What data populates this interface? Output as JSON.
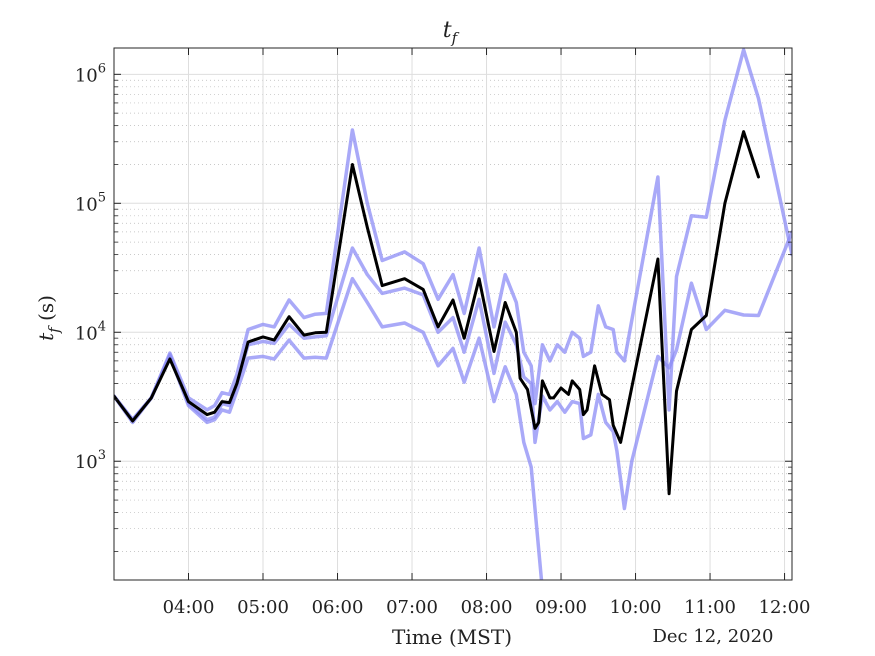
{
  "chart_data": {
    "type": "line",
    "title": "t",
    "title_sub": "f",
    "xlabel": "Time (MST)",
    "ylabel_main": "t",
    "ylabel_sub": "f",
    "ylabel_unit": " (s)",
    "date_label": "Dec 12, 2020",
    "xscale": "linear",
    "yscale": "log",
    "xlim": [
      3.0,
      12.1
    ],
    "ylim": [
      120,
      1600000
    ],
    "grid": true,
    "x_ticks": [
      {
        "value": 4,
        "label": "04:00"
      },
      {
        "value": 5,
        "label": "05:00"
      },
      {
        "value": 6,
        "label": "06:00"
      },
      {
        "value": 7,
        "label": "07:00"
      },
      {
        "value": 8,
        "label": "08:00"
      },
      {
        "value": 9,
        "label": "09:00"
      },
      {
        "value": 10,
        "label": "10:00"
      },
      {
        "value": 11,
        "label": "11:00"
      },
      {
        "value": 12,
        "label": "12:00"
      }
    ],
    "y_ticks": [
      {
        "value": 1000,
        "base": "10",
        "exp": "3"
      },
      {
        "value": 10000,
        "base": "10",
        "exp": "4"
      },
      {
        "value": 100000,
        "base": "10",
        "exp": "5"
      },
      {
        "value": 1000000,
        "base": "10",
        "exp": "6"
      }
    ],
    "series": [
      {
        "role": "upper-bound",
        "color": "#8c8cf5",
        "points": [
          [
            3.0,
            3200
          ],
          [
            3.25,
            2100
          ],
          [
            3.5,
            3100
          ],
          [
            3.75,
            6900
          ],
          [
            4.0,
            3100
          ],
          [
            4.25,
            2500
          ],
          [
            4.35,
            2700
          ],
          [
            4.45,
            3400
          ],
          [
            4.55,
            3300
          ],
          [
            4.65,
            4700
          ],
          [
            4.8,
            10500
          ],
          [
            5.0,
            11500
          ],
          [
            5.15,
            11000
          ],
          [
            5.35,
            17800
          ],
          [
            5.55,
            13000
          ],
          [
            5.7,
            13800
          ],
          [
            5.85,
            14000
          ],
          [
            6.2,
            370000
          ],
          [
            6.4,
            100000
          ],
          [
            6.6,
            36000
          ],
          [
            6.9,
            42000
          ],
          [
            7.15,
            34000
          ],
          [
            7.35,
            18000
          ],
          [
            7.55,
            28000
          ],
          [
            7.7,
            14000
          ],
          [
            7.9,
            45000
          ],
          [
            8.1,
            11000
          ],
          [
            8.25,
            28000
          ],
          [
            8.4,
            17000
          ],
          [
            8.5,
            7000
          ],
          [
            8.6,
            5500
          ],
          [
            8.65,
            2800
          ],
          [
            8.75,
            8000
          ],
          [
            8.85,
            6000
          ],
          [
            8.95,
            8000
          ],
          [
            9.05,
            7000
          ],
          [
            9.15,
            10000
          ],
          [
            9.25,
            9000
          ],
          [
            9.3,
            6500
          ],
          [
            9.4,
            7000
          ],
          [
            9.5,
            16000
          ],
          [
            9.6,
            11000
          ],
          [
            9.7,
            10500
          ],
          [
            9.75,
            7000
          ],
          [
            9.85,
            6000
          ],
          [
            10.3,
            160000
          ],
          [
            10.45,
            2500
          ],
          [
            10.55,
            27000
          ],
          [
            10.75,
            80000
          ],
          [
            10.95,
            78000
          ],
          [
            11.2,
            440000
          ],
          [
            11.45,
            1550000
          ],
          [
            11.65,
            650000
          ],
          [
            12.1,
            40000
          ]
        ]
      },
      {
        "role": "lower-bound",
        "color": "#8c8cf5",
        "points": [
          [
            3.0,
            3200
          ],
          [
            3.25,
            2000
          ],
          [
            3.5,
            3100
          ],
          [
            3.75,
            6500
          ],
          [
            4.0,
            2700
          ],
          [
            4.25,
            2000
          ],
          [
            4.35,
            2100
          ],
          [
            4.45,
            2500
          ],
          [
            4.55,
            2400
          ],
          [
            4.65,
            3500
          ],
          [
            4.8,
            6300
          ],
          [
            5.0,
            6500
          ],
          [
            5.15,
            6200
          ],
          [
            5.35,
            8700
          ],
          [
            5.55,
            6300
          ],
          [
            5.7,
            6400
          ],
          [
            5.85,
            6300
          ],
          [
            6.2,
            26000
          ],
          [
            6.4,
            17000
          ],
          [
            6.6,
            11000
          ],
          [
            6.9,
            11800
          ],
          [
            7.15,
            10000
          ],
          [
            7.35,
            5500
          ],
          [
            7.55,
            7500
          ],
          [
            7.7,
            4100
          ],
          [
            7.9,
            9000
          ],
          [
            8.1,
            2900
          ],
          [
            8.25,
            5400
          ],
          [
            8.4,
            3300
          ],
          [
            8.5,
            1400
          ],
          [
            8.6,
            900
          ],
          [
            8.75,
            100
          ]
        ]
      },
      {
        "role": "lower-bound-b",
        "color": "#8c8cf5",
        "points": [
          [
            3.0,
            3200
          ],
          [
            3.25,
            2100
          ],
          [
            3.5,
            3100
          ],
          [
            3.75,
            6700
          ],
          [
            4.0,
            2800
          ],
          [
            4.25,
            2100
          ],
          [
            4.35,
            2200
          ],
          [
            4.45,
            2800
          ],
          [
            4.55,
            2700
          ],
          [
            4.65,
            4000
          ],
          [
            4.8,
            8000
          ],
          [
            5.0,
            8500
          ],
          [
            5.15,
            8200
          ],
          [
            5.35,
            11500
          ],
          [
            5.55,
            9000
          ],
          [
            5.7,
            9200
          ],
          [
            5.85,
            9400
          ],
          [
            6.2,
            45000
          ],
          [
            6.4,
            28000
          ],
          [
            6.6,
            20000
          ],
          [
            6.9,
            22000
          ],
          [
            7.15,
            19500
          ],
          [
            7.35,
            10000
          ],
          [
            7.55,
            13000
          ],
          [
            7.7,
            7000
          ],
          [
            7.9,
            18000
          ],
          [
            8.1,
            4800
          ],
          [
            8.25,
            12000
          ],
          [
            8.4,
            8000
          ],
          [
            8.5,
            4500
          ],
          [
            8.6,
            4000
          ],
          [
            8.65,
            1400
          ],
          [
            8.75,
            3200
          ],
          [
            8.85,
            2500
          ],
          [
            8.95,
            2900
          ],
          [
            9.05,
            2400
          ],
          [
            9.15,
            2900
          ],
          [
            9.25,
            2800
          ],
          [
            9.3,
            1500
          ],
          [
            9.4,
            1600
          ],
          [
            9.5,
            3300
          ],
          [
            9.6,
            2000
          ],
          [
            9.7,
            1700
          ],
          [
            9.75,
            1200
          ],
          [
            9.85,
            430
          ],
          [
            9.95,
            1000
          ],
          [
            10.3,
            6500
          ],
          [
            10.45,
            5300
          ],
          [
            10.55,
            7300
          ],
          [
            10.75,
            24000
          ],
          [
            10.95,
            10500
          ],
          [
            11.2,
            14800
          ],
          [
            11.45,
            13600
          ],
          [
            11.65,
            13500
          ],
          [
            12.1,
            60000
          ]
        ]
      },
      {
        "role": "estimate",
        "color": "#000000",
        "points": [
          [
            3.0,
            3200
          ],
          [
            3.25,
            2050
          ],
          [
            3.5,
            3100
          ],
          [
            3.75,
            6200
          ],
          [
            4.0,
            2900
          ],
          [
            4.25,
            2300
          ],
          [
            4.35,
            2400
          ],
          [
            4.45,
            2900
          ],
          [
            4.55,
            2850
          ],
          [
            4.65,
            4000
          ],
          [
            4.8,
            8400
          ],
          [
            5.0,
            9200
          ],
          [
            5.15,
            8700
          ],
          [
            5.35,
            13200
          ],
          [
            5.55,
            9500
          ],
          [
            5.7,
            9900
          ],
          [
            5.85,
            10000
          ],
          [
            6.2,
            200000
          ],
          [
            6.4,
            65000
          ],
          [
            6.6,
            23000
          ],
          [
            6.9,
            26000
          ],
          [
            7.15,
            21500
          ],
          [
            7.35,
            11000
          ],
          [
            7.55,
            17800
          ],
          [
            7.7,
            9000
          ],
          [
            7.9,
            26000
          ],
          [
            8.1,
            7100
          ],
          [
            8.25,
            17000
          ],
          [
            8.4,
            10000
          ],
          [
            8.45,
            4400
          ],
          [
            8.55,
            3600
          ],
          [
            8.65,
            1800
          ],
          [
            8.7,
            2000
          ],
          [
            8.75,
            4200
          ],
          [
            8.85,
            3100
          ],
          [
            8.9,
            3100
          ],
          [
            9.0,
            3700
          ],
          [
            9.1,
            3300
          ],
          [
            9.15,
            4200
          ],
          [
            9.25,
            3600
          ],
          [
            9.3,
            2300
          ],
          [
            9.35,
            2500
          ],
          [
            9.45,
            5500
          ],
          [
            9.55,
            3300
          ],
          [
            9.65,
            3000
          ],
          [
            9.7,
            1900
          ],
          [
            9.8,
            1400
          ],
          [
            10.3,
            37000
          ],
          [
            10.45,
            560
          ],
          [
            10.55,
            3500
          ],
          [
            10.75,
            10500
          ],
          [
            10.95,
            13500
          ],
          [
            11.2,
            100000
          ],
          [
            11.45,
            360000
          ],
          [
            11.65,
            160000
          ]
        ]
      }
    ]
  }
}
